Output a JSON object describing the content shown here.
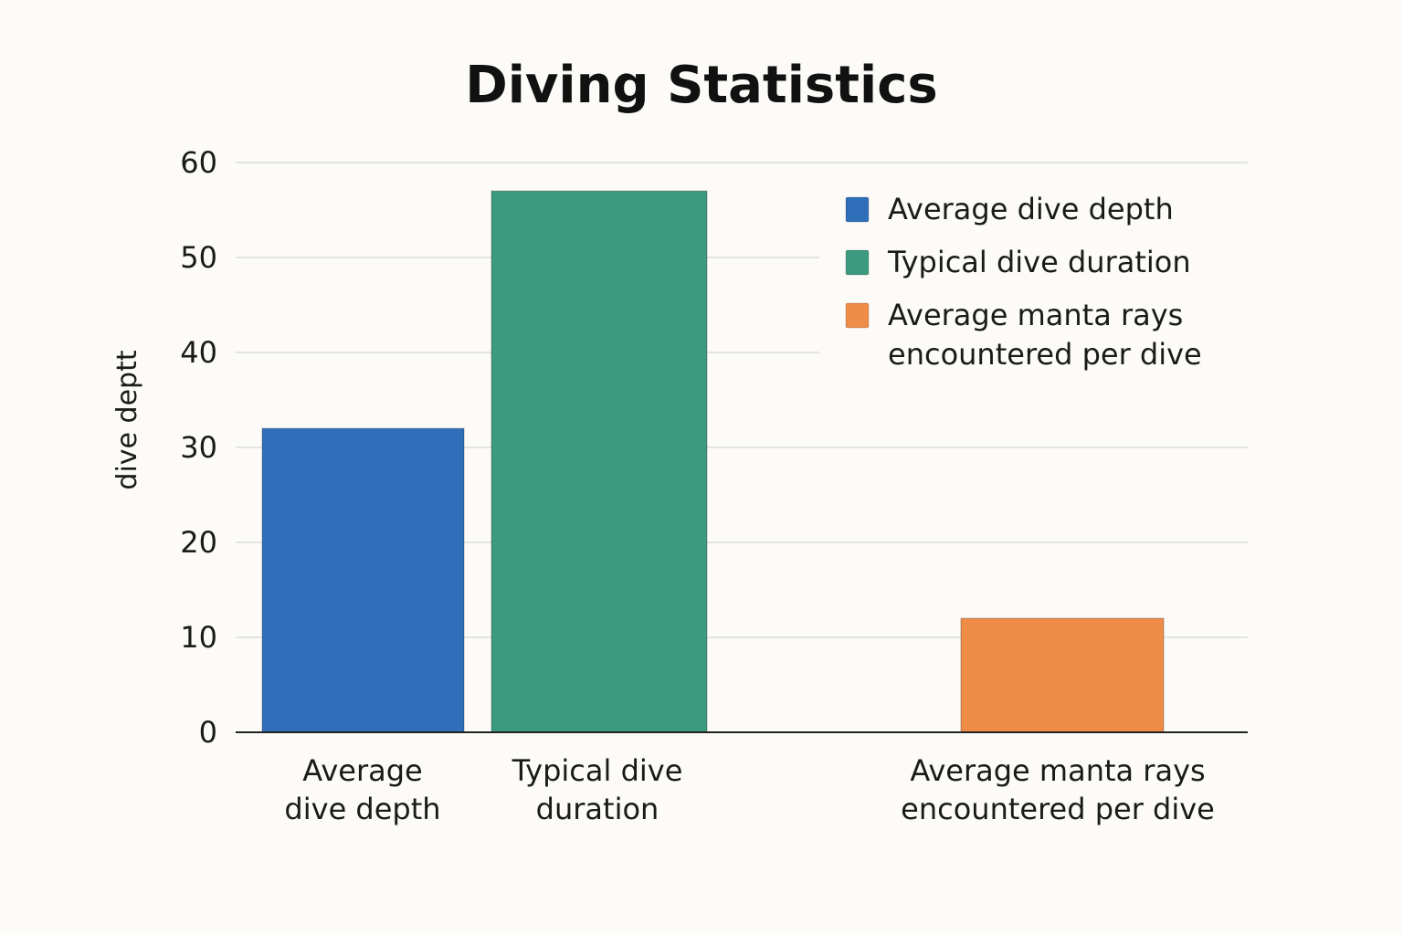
{
  "chart_data": {
    "type": "bar",
    "title": "Diving Statistics",
    "xlabel": "",
    "ylabel": "dive deptt",
    "ylim": [
      0,
      60
    ],
    "yticks": [
      "0",
      "10",
      "20",
      "30",
      "40",
      "50",
      "60"
    ],
    "categories": [
      [
        "Average",
        "dive depth"
      ],
      [
        "Typical dive",
        "duration"
      ],
      [
        "Average manta rays",
        "encountered per dive"
      ]
    ],
    "values": [
      32,
      57,
      12
    ],
    "colors": [
      "#2f6fba",
      "#3c9a7f",
      "#ee8c48"
    ],
    "grid": true,
    "legend_position": "top-right",
    "legend": [
      {
        "lines": [
          "Average dive depth"
        ],
        "color": "#2f6fba"
      },
      {
        "lines": [
          "Typical dive duration"
        ],
        "color": "#3c9a7f"
      },
      {
        "lines": [
          "Average manta rays",
          "encountered per dive"
        ],
        "color": "#ee8c48"
      }
    ]
  }
}
